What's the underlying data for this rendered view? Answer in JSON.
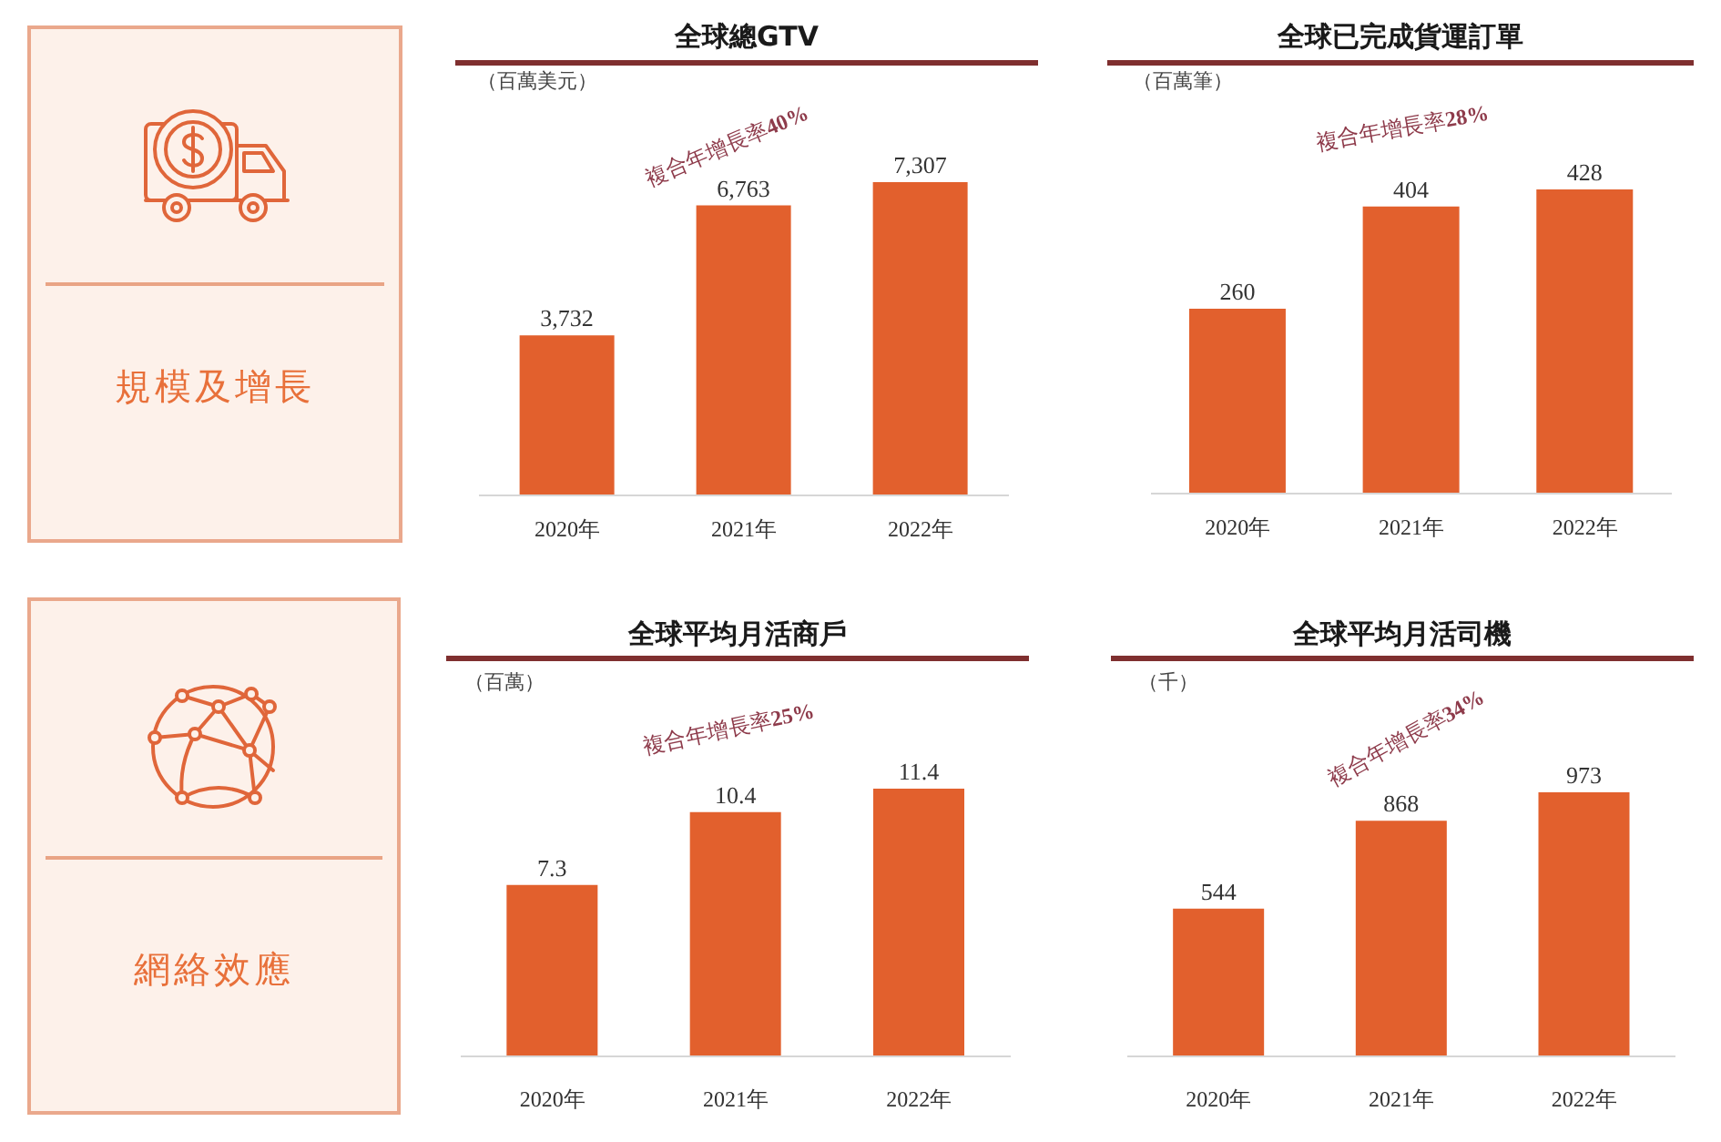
{
  "chart_data": [
    {
      "type": "other",
      "title": "規模及增長"
    },
    {
      "type": "bar",
      "title": "全球總GTV",
      "ylabel": "（百萬美元）",
      "categories": [
        "2020年",
        "2021年",
        "2022年"
      ],
      "values": [
        3732,
        6763,
        7307
      ],
      "value_labels": [
        "3,732",
        "6,763",
        "7,307"
      ],
      "color": "#e2602d",
      "annotations": [
        "複合年增長率40%"
      ]
    },
    {
      "type": "bar",
      "title": "全球已完成貨運訂單",
      "ylabel": "（百萬筆）",
      "categories": [
        "2020年",
        "2021年",
        "2022年"
      ],
      "values": [
        260,
        404,
        428
      ],
      "data_labels": true,
      "color": "#e2602d",
      "annotations": [
        "複合年增長率28%"
      ]
    },
    {
      "type": "other",
      "title": "網絡效應"
    },
    {
      "type": "bar",
      "title": "全球平均月活商戶",
      "ylabel": "（百萬）",
      "categories": [
        "2020年",
        "2021年",
        "2022年"
      ],
      "values": [
        7.3,
        10.4,
        11.4
      ],
      "data_labels": true,
      "color": "#e2602d",
      "annotations": [
        "複合年增長率25%"
      ]
    },
    {
      "type": "bar",
      "title": "全球平均月活司機",
      "ylabel": "（千）",
      "categories": [
        "2020年",
        "2021年",
        "2022年"
      ],
      "values": [
        544,
        868,
        973
      ],
      "data_labels": true,
      "color": "#e2602d",
      "annotations": [
        "複合年增長率34%"
      ]
    }
  ]
}
